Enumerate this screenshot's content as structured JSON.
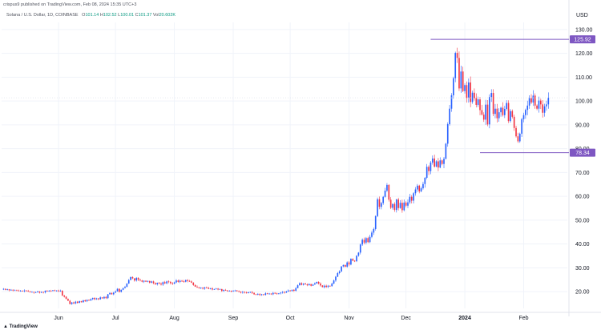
{
  "header": {
    "published_by": "crispus9 published on TradingView.com, Feb 08, 2024 15:35 UTC+3"
  },
  "legend": {
    "symbol": "Solana / U.S. Dollar, 1D, COINBASE",
    "open_label": "O",
    "open": "101.14",
    "high_label": "H",
    "high": "102.52",
    "low_label": "L",
    "low": "100.01",
    "close_label": "C",
    "close": "101.37",
    "volume_label": "Vol",
    "volume": "20.602K"
  },
  "footer": {
    "brand": "TradingView"
  },
  "colors": {
    "up": "#2962ff",
    "down": "#f23645",
    "accent": "#7e57c2",
    "line": "#b2a4e0",
    "text": "#131722"
  },
  "chart_data": {
    "type": "candlestick",
    "currency": "USD",
    "y_ticks": [
      20,
      30,
      40,
      50,
      60,
      70,
      80,
      90,
      100,
      110,
      120,
      130
    ],
    "y_ticks_label": [
      "20.00",
      "30.00",
      "40.00",
      "50.00",
      "60.00",
      "70.00",
      "80.00",
      "90.00",
      "100.00",
      "110.00",
      "120.00",
      "130.00"
    ],
    "ylim": [
      13,
      133
    ],
    "x_ticks": [
      {
        "label": "Jun",
        "day": 30,
        "bold": false
      },
      {
        "label": "Jul",
        "day": 60,
        "bold": false
      },
      {
        "label": "Aug",
        "day": 91,
        "bold": false
      },
      {
        "label": "Sep",
        "day": 122,
        "bold": false
      },
      {
        "label": "Oct",
        "day": 152,
        "bold": false
      },
      {
        "label": "Nov",
        "day": 183,
        "bold": false
      },
      {
        "label": "Dec",
        "day": 213,
        "bold": false
      },
      {
        "label": "2024",
        "day": 244,
        "bold": true
      },
      {
        "label": "Feb",
        "day": 275,
        "bold": false
      }
    ],
    "xlim": [
      0,
      298
    ],
    "annotations": [
      {
        "type": "hline",
        "value": 125.92,
        "label": "125.92",
        "from_day": 226
      },
      {
        "type": "hline",
        "value": 78.34,
        "label": "78.34",
        "from_day": 252
      }
    ],
    "current_price": 101.37,
    "closes": [
      21.2,
      20.8,
      21.0,
      20.6,
      20.8,
      20.5,
      20.6,
      20.5,
      20.3,
      20.4,
      20.2,
      20.5,
      20.3,
      20.1,
      19.9,
      19.9,
      19.6,
      19.8,
      20.1,
      19.6,
      19.9,
      19.7,
      20.4,
      20.2,
      20.4,
      20.3,
      20.6,
      20.3,
      20.5,
      20.2,
      20.4,
      18.4,
      17.9,
      17.0,
      16.2,
      14.8,
      15.5,
      15.1,
      15.8,
      15.3,
      16.0,
      15.6,
      16.4,
      16.0,
      16.6,
      16.3,
      16.9,
      17.4,
      16.8,
      17.2,
      16.8,
      17.6,
      17.2,
      17.8,
      17.3,
      18.9,
      19.5,
      18.9,
      19.6,
      20.1,
      21.2,
      19.9,
      20.8,
      21.5,
      22.0,
      23.4,
      24.9,
      26.1,
      25.6,
      24.7,
      25.8,
      25.0,
      24.7,
      24.2,
      24.6,
      24.2,
      24.5,
      23.8,
      24.3,
      23.6,
      23.1,
      23.7,
      23.4,
      23.0,
      24.0,
      23.5,
      24.3,
      24.1,
      23.6,
      23.3,
      23.9,
      24.7,
      24.1,
      24.6,
      24.4,
      24.2,
      24.9,
      24.5,
      24.3,
      23.8,
      22.8,
      22.1,
      21.9,
      21.5,
      21.7,
      21.3,
      21.8,
      21.6,
      21.2,
      21.4,
      20.9,
      21.1,
      21.3,
      20.9,
      21.1,
      20.3,
      20.7,
      20.5,
      20.2,
      20.4,
      20.1,
      20.3,
      20.5,
      20.2,
      20.0,
      19.6,
      19.9,
      19.7,
      19.4,
      19.8,
      19.9,
      19.5,
      18.9,
      18.8,
      19.0,
      18.6,
      18.9,
      18.7,
      19.3,
      19.1,
      19.2,
      18.9,
      19.5,
      19.3,
      19.0,
      19.3,
      19.6,
      19.9,
      19.6,
      20.1,
      20.5,
      20.3,
      20.8,
      20.4,
      21.5,
      22.7,
      23.6,
      22.9,
      23.4,
      23.1,
      22.7,
      23.2,
      22.5,
      23.0,
      23.5,
      24.1,
      23.4,
      22.6,
      21.9,
      22.5,
      22.0,
      22.5,
      22.3,
      23.4,
      24.7,
      26.3,
      27.8,
      28.5,
      30.6,
      31.2,
      30.5,
      32.3,
      31.4,
      33.8,
      33.0,
      32.8,
      35.1,
      36.4,
      39.8,
      41.8,
      40.6,
      42.5,
      40.8,
      43.0,
      44.8,
      46.3,
      51.7,
      58.8,
      55.6,
      57.2,
      59.8,
      62.4,
      64.8,
      58.6,
      55.2,
      56.8,
      54.3,
      58.7,
      55.1,
      57.3,
      54.2,
      57.4,
      56.1,
      57.5,
      59.8,
      58.2,
      61.3,
      62.9,
      64.5,
      62.1,
      63.4,
      65.2,
      67.8,
      72.4,
      70.6,
      74.2,
      75.9,
      72.5,
      74.7,
      72.1,
      75.1,
      73.6,
      75.8,
      82.1,
      90.3,
      96.8,
      102.4,
      109.6,
      120.2,
      118.1,
      105.3,
      112.4,
      104.2,
      106.7,
      101.3,
      107.8,
      99.6,
      103.5,
      101.2,
      98.4,
      100.7,
      96.2,
      94.3,
      92.2,
      98.5,
      90.2,
      101.7,
      103.4,
      94.6,
      96.8,
      92.8,
      95.3,
      97.2,
      94.1,
      96.7,
      99.2,
      91.6,
      95.8,
      93.4,
      88.7,
      85.2,
      83.1,
      86.3,
      92.4,
      94.1,
      96.3,
      98.1,
      101.2,
      99.4,
      102.3,
      98.1,
      96.8,
      100.2,
      98.6,
      95.1,
      97.8,
      98.6,
      101.37
    ]
  }
}
